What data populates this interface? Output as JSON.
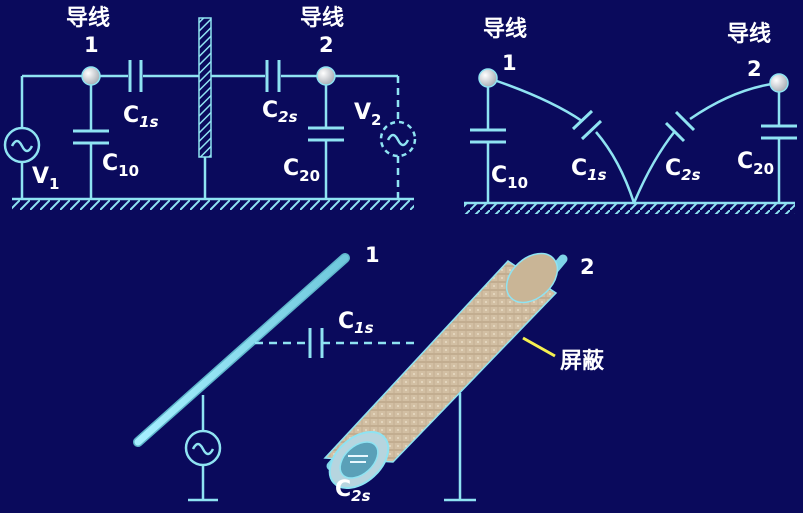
{
  "colors": {
    "background": "#0a0a5c",
    "wire": "#8fe3f2",
    "label": "#ffffff",
    "callout": "#f5f050",
    "shield": "#d8c4a8"
  },
  "icons": [
    "ac-source-icon",
    "ground-icon",
    "capacitor-icon",
    "grounded-plate-icon"
  ],
  "circuit_left": {
    "conductor1": {
      "title": "导线",
      "number": "1"
    },
    "conductor2": {
      "title": "导线",
      "number": "2"
    },
    "c1s": {
      "main": "C",
      "sub": "1s"
    },
    "c2s": {
      "main": "C",
      "sub": "2s"
    },
    "c10": {
      "main": "C",
      "sub": "10"
    },
    "c20": {
      "main": "C",
      "sub": "20"
    },
    "v1": {
      "main": "V",
      "sub": "1"
    },
    "v2": {
      "main": "V",
      "sub": "2"
    }
  },
  "circuit_right": {
    "conductor1": {
      "title": "导线",
      "number": "1"
    },
    "conductor2": {
      "title": "导线",
      "number": "2"
    },
    "c1s": {
      "main": "C",
      "sub": "1s"
    },
    "c2s": {
      "main": "C",
      "sub": "2s"
    },
    "c10": {
      "main": "C",
      "sub": "10"
    },
    "c20": {
      "main": "C",
      "sub": "20"
    }
  },
  "physical": {
    "wire1_number": "1",
    "wire2_number": "2",
    "c1s": {
      "main": "C",
      "sub": "1s"
    },
    "c2s": {
      "main": "C",
      "sub": "2s"
    },
    "shield_label": "屏蔽"
  }
}
